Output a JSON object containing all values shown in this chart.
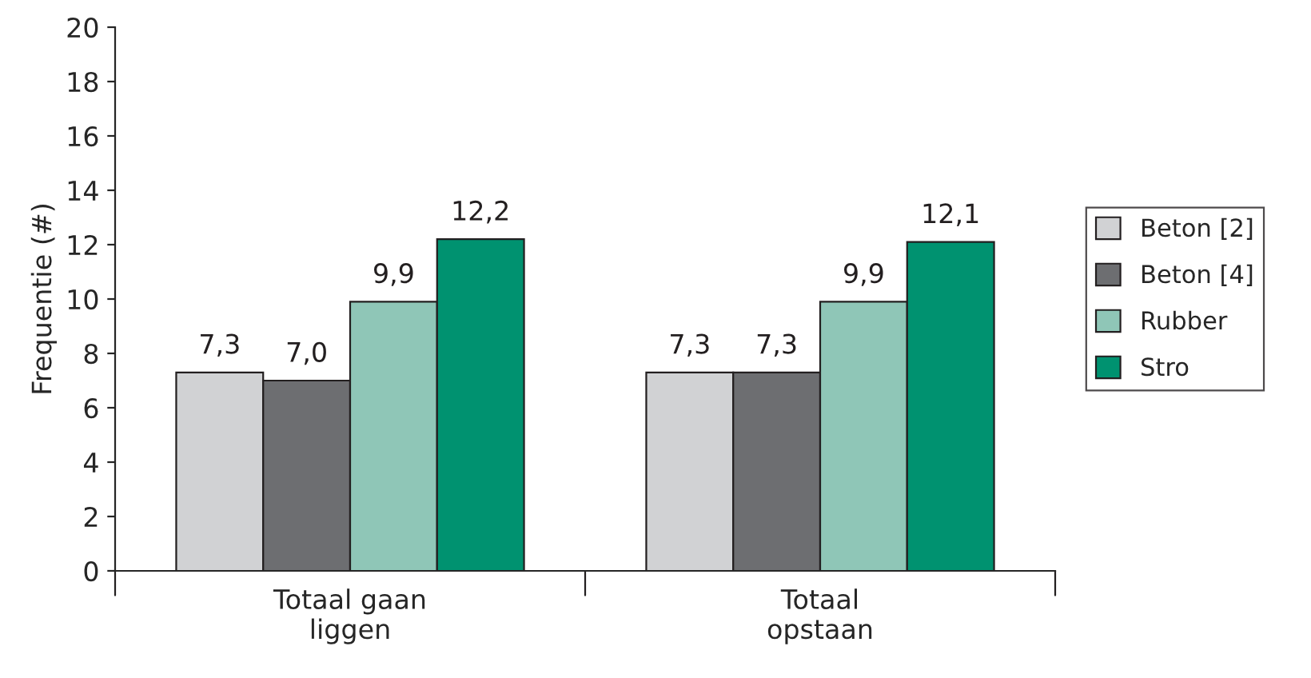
{
  "chart_data": {
    "type": "bar",
    "ylabel": "Frequentie (#)",
    "categories": [
      "Totaal gaan\nliggen",
      "Totaal\nopstaan"
    ],
    "series": [
      {
        "name": "Beton [2]",
        "color": "#d1d2d4",
        "values": [
          7.3,
          7.3
        ],
        "value_labels": [
          "7,3",
          "7,3"
        ]
      },
      {
        "name": "Beton [4]",
        "color": "#6d6e71",
        "values": [
          7.0,
          7.3
        ],
        "value_labels": [
          "7,0",
          "7,3"
        ]
      },
      {
        "name": "Rubber",
        "color": "#8fc6b7",
        "values": [
          9.9,
          9.9
        ],
        "value_labels": [
          "9,9",
          "9,9"
        ]
      },
      {
        "name": "Stro",
        "color": "#009270",
        "values": [
          12.2,
          12.1
        ],
        "value_labels": [
          "12,2",
          "12,1"
        ]
      }
    ],
    "ylim": [
      0,
      20
    ],
    "yticks": [
      0,
      2,
      4,
      6,
      8,
      10,
      12,
      14,
      16,
      18,
      20
    ],
    "grid": false,
    "legend": "right"
  }
}
